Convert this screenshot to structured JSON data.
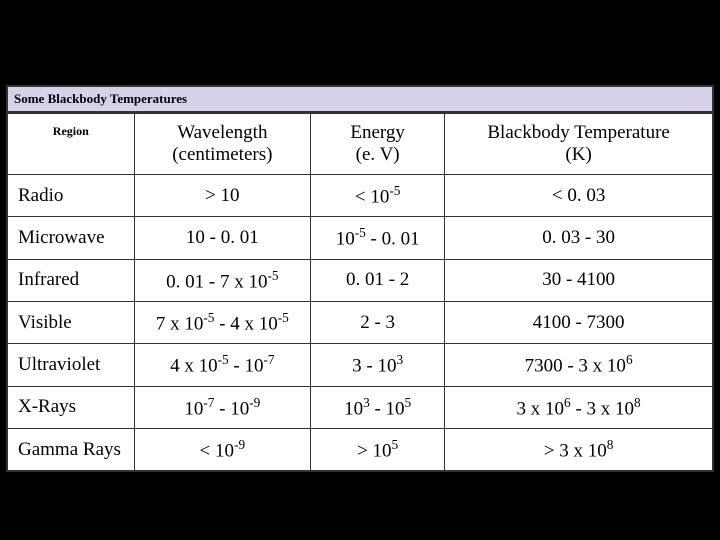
{
  "table": {
    "caption": "Some Blackbody Temperatures",
    "background_color": "#ffffff",
    "caption_bg": "#d7d2e9",
    "caption_fontsize": 13,
    "header_fontsize": 19,
    "cell_fontsize": 19,
    "border_color": "#333333",
    "column_widths_pct": [
      18,
      25,
      19,
      38
    ],
    "header_alignment": "center",
    "cell_alignment": "center",
    "region_alignment": "left",
    "columns": [
      {
        "label": "Region",
        "label2": ""
      },
      {
        "label": "Wavelength",
        "label2": "(centimeters)"
      },
      {
        "label": "Energy",
        "label2": "(e. V)"
      },
      {
        "label": "Blackbody Temperature",
        "label2": "(K)"
      }
    ],
    "rows": [
      {
        "region": "Radio",
        "wavelength": {
          "text": "> 10"
        },
        "energy": {
          "prefix": "< 10",
          "sup": "-5"
        },
        "temp": {
          "text": "< 0. 03"
        }
      },
      {
        "region": "Microwave",
        "wavelength": {
          "text": "10 - 0. 01"
        },
        "energy": {
          "pre": "10",
          "sup": "-5",
          "post": " - 0. 01"
        },
        "temp": {
          "text": "0. 03 - 30"
        }
      },
      {
        "region": "Infrared",
        "wavelength": {
          "pre": "0. 01 - 7 x 10",
          "sup": "-5"
        },
        "energy": {
          "text": "0. 01 - 2"
        },
        "temp": {
          "text": "30 - 4100"
        }
      },
      {
        "region": "Visible",
        "wavelength": {
          "pre": "7 x 10",
          "sup": "-5",
          "mid": " - 4 x 10",
          "sup2": "-5"
        },
        "energy": {
          "text": "2 - 3"
        },
        "temp": {
          "text": "4100 - 7300"
        }
      },
      {
        "region": "Ultraviolet",
        "wavelength": {
          "pre": "4 x 10",
          "sup": "-5",
          "mid": " - 10",
          "sup2": "-7"
        },
        "energy": {
          "pre": "3 - 10",
          "sup": "3"
        },
        "temp": {
          "pre": "7300 - 3 x 10",
          "sup": "6"
        }
      },
      {
        "region": "X-Rays",
        "wavelength": {
          "pre": "10",
          "sup": "-7",
          "mid": " - 10",
          "sup2": "-9"
        },
        "energy": {
          "pre": "10",
          "sup": "3",
          "mid": " - 10",
          "sup2": "5"
        },
        "temp": {
          "pre": "3 x 10",
          "sup": "6",
          "mid": " - 3 x 10",
          "sup2": "8"
        }
      },
      {
        "region": "Gamma Rays",
        "wavelength": {
          "prefix": "< 10",
          "sup": "-9"
        },
        "energy": {
          "prefix": "> 10",
          "sup": "5"
        },
        "temp": {
          "prefix": "> 3 x 10",
          "sup": "8"
        }
      }
    ]
  }
}
